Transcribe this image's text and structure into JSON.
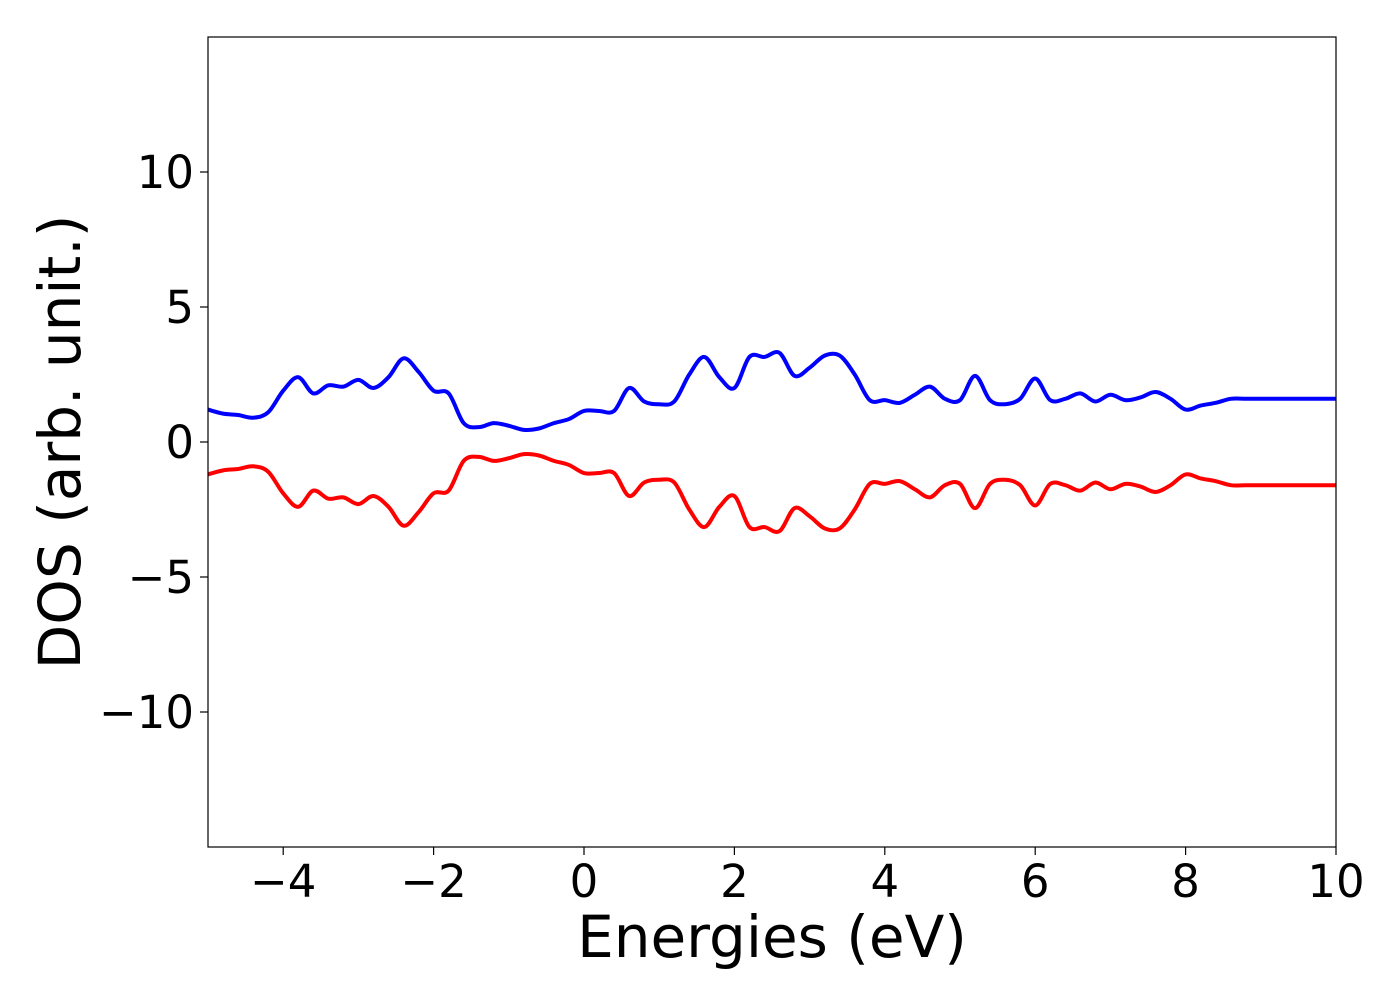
{
  "chart_data": {
    "type": "line",
    "title": "",
    "xlabel": "Energies (eV)",
    "ylabel": "DOS (arb. unit.)",
    "xlim": [
      -5,
      10
    ],
    "ylim": [
      -15,
      15
    ],
    "xticks": [
      -4,
      -2,
      0,
      2,
      4,
      6,
      8,
      10
    ],
    "xtick_labels": [
      "−4",
      "−2",
      "0",
      "2",
      "4",
      "6",
      "8",
      "10"
    ],
    "yticks": [
      -10,
      -5,
      0,
      5,
      10
    ],
    "ytick_labels": [
      "−10",
      "−5",
      "0",
      "5",
      "10"
    ],
    "grid": false,
    "legend": "none",
    "x": [
      -5.0,
      -4.8,
      -4.6,
      -4.4,
      -4.2,
      -4.0,
      -3.8,
      -3.6,
      -3.4,
      -3.2,
      -3.0,
      -2.8,
      -2.6,
      -2.4,
      -2.2,
      -2.0,
      -1.8,
      -1.6,
      -1.4,
      -1.2,
      -1.0,
      -0.8,
      -0.6,
      -0.4,
      -0.2,
      0.0,
      0.2,
      0.4,
      0.6,
      0.8,
      1.0,
      1.2,
      1.4,
      1.6,
      1.8,
      2.0,
      2.2,
      2.4,
      2.6,
      2.8,
      3.0,
      3.2,
      3.4,
      3.6,
      3.8,
      4.0,
      4.2,
      4.4,
      4.6,
      4.8,
      5.0,
      5.2,
      5.4,
      5.6,
      5.8,
      6.0,
      6.2,
      6.4,
      6.6,
      6.8,
      7.0,
      7.2,
      7.4,
      7.6,
      7.8,
      8.0,
      8.2,
      8.4,
      8.6,
      8.8,
      9.0,
      9.2,
      9.4,
      9.6,
      9.8,
      10.0
    ],
    "series": [
      {
        "color": "#0000ff",
        "values": [
          1.2,
          1.05,
          1.0,
          0.9,
          1.1,
          1.9,
          2.4,
          1.8,
          2.1,
          2.05,
          2.3,
          2.0,
          2.4,
          3.1,
          2.6,
          1.9,
          1.8,
          0.7,
          0.55,
          0.7,
          0.6,
          0.45,
          0.5,
          0.7,
          0.85,
          1.15,
          1.15,
          1.15,
          2.0,
          1.5,
          1.4,
          1.5,
          2.5,
          3.15,
          2.4,
          2.0,
          3.15,
          3.15,
          3.3,
          2.45,
          2.75,
          3.2,
          3.2,
          2.5,
          1.55,
          1.55,
          1.45,
          1.75,
          2.05,
          1.6,
          1.55,
          2.45,
          1.55,
          1.4,
          1.6,
          2.35,
          1.55,
          1.6,
          1.8,
          1.5,
          1.75,
          1.55,
          1.65,
          1.85,
          1.6,
          1.2,
          1.35,
          1.45,
          1.6,
          1.6,
          1.6,
          1.6,
          1.6,
          1.6,
          1.6,
          1.6
        ]
      },
      {
        "color": "#ff0000",
        "values": [
          -1.2,
          -1.05,
          -1.0,
          -0.9,
          -1.1,
          -1.9,
          -2.4,
          -1.8,
          -2.1,
          -2.05,
          -2.3,
          -2.0,
          -2.4,
          -3.1,
          -2.6,
          -1.9,
          -1.8,
          -0.7,
          -0.55,
          -0.7,
          -0.6,
          -0.45,
          -0.5,
          -0.7,
          -0.85,
          -1.15,
          -1.15,
          -1.15,
          -2.0,
          -1.5,
          -1.4,
          -1.5,
          -2.5,
          -3.15,
          -2.4,
          -2.0,
          -3.15,
          -3.15,
          -3.3,
          -2.45,
          -2.75,
          -3.2,
          -3.2,
          -2.5,
          -1.55,
          -1.55,
          -1.45,
          -1.75,
          -2.05,
          -1.6,
          -1.55,
          -2.45,
          -1.55,
          -1.4,
          -1.6,
          -2.35,
          -1.55,
          -1.6,
          -1.8,
          -1.5,
          -1.75,
          -1.55,
          -1.65,
          -1.85,
          -1.6,
          -1.2,
          -1.35,
          -1.45,
          -1.6,
          -1.6,
          -1.6,
          -1.6,
          -1.6,
          -1.6,
          -1.6,
          -1.6
        ]
      }
    ]
  }
}
